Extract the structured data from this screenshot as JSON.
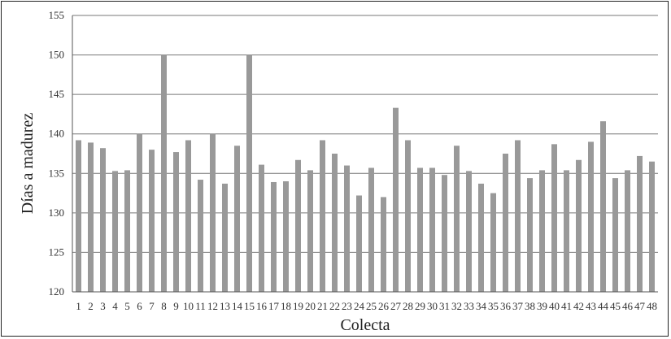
{
  "chart_data": {
    "type": "bar",
    "title": "",
    "xlabel": "Colecta",
    "ylabel": "Días a madurez",
    "ylim": [
      120,
      155
    ],
    "yticks": [
      120,
      125,
      130,
      135,
      140,
      145,
      150,
      155
    ],
    "grid": true,
    "bar_color": "#999999",
    "grid_color": "#777777",
    "categories": [
      "1",
      "2",
      "3",
      "4",
      "5",
      "6",
      "7",
      "8",
      "9",
      "10",
      "11",
      "12",
      "13",
      "14",
      "15",
      "16",
      "17",
      "18",
      "19",
      "20",
      "21",
      "22",
      "23",
      "24",
      "25",
      "26",
      "27",
      "28",
      "29",
      "30",
      "31",
      "32",
      "33",
      "34",
      "35",
      "36",
      "37",
      "38",
      "39",
      "40",
      "41",
      "42",
      "43",
      "44",
      "45",
      "46",
      "47",
      "48"
    ],
    "values": [
      139.2,
      138.9,
      138.2,
      135.3,
      135.4,
      140.0,
      138.0,
      150.0,
      137.7,
      139.2,
      134.2,
      140.0,
      133.7,
      138.5,
      150.0,
      136.1,
      133.9,
      134.0,
      136.7,
      135.4,
      139.2,
      137.5,
      136.0,
      132.2,
      135.7,
      132.0,
      143.3,
      139.2,
      135.7,
      135.7,
      134.8,
      138.5,
      135.3,
      133.7,
      132.5,
      137.5,
      139.2,
      134.4,
      135.4,
      138.7,
      135.4,
      136.7,
      139.0,
      141.6,
      134.4,
      135.4,
      137.2,
      136.5
    ]
  }
}
